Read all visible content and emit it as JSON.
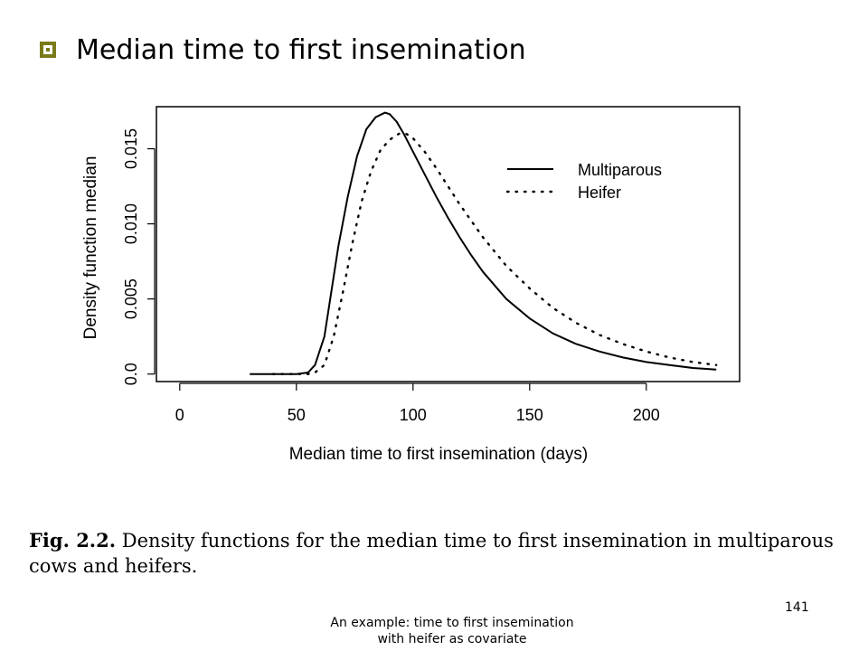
{
  "slide": {
    "title": "Median time to first insemination",
    "bullet_icon": "square-bullet-icon",
    "bullet_color": "#7a7a1a",
    "page_number": "141",
    "footer_line1": "An example: time to first insemination",
    "footer_line2": "with heifer as covariate"
  },
  "caption": {
    "fig": "Fig. 2.2.",
    "text": "Density functions for the median time to first insemination in multiparous cows and heifers."
  },
  "chart_data": {
    "type": "line",
    "title": "",
    "xlabel": "Median time to first insemination (days)",
    "ylabel": "Density function median",
    "xlim": [
      -10,
      240
    ],
    "ylim": [
      -0.0005,
      0.0178
    ],
    "xticks": [
      0,
      50,
      100,
      150,
      200
    ],
    "xtick_labels": [
      "0",
      "50",
      "100",
      "150",
      "200"
    ],
    "yticks": [
      0.0,
      0.005,
      0.01,
      0.015
    ],
    "ytick_labels": [
      "0.0",
      "0.005",
      "0.010",
      "0.015"
    ],
    "grid": false,
    "legend_position": "top-right",
    "series": [
      {
        "name": "Multiparous",
        "style": "solid",
        "x": [
          30,
          40,
          50,
          55,
          58,
          62,
          65,
          68,
          72,
          76,
          80,
          84,
          88,
          90,
          93,
          96,
          100,
          105,
          110,
          115,
          120,
          125,
          130,
          140,
          150,
          160,
          170,
          180,
          190,
          200,
          210,
          220,
          230
        ],
        "y": [
          0.0,
          0.0,
          0.0,
          0.0001,
          0.0006,
          0.0025,
          0.0055,
          0.0085,
          0.0118,
          0.0145,
          0.0163,
          0.0171,
          0.0174,
          0.0173,
          0.0168,
          0.016,
          0.0148,
          0.0133,
          0.0118,
          0.0104,
          0.0091,
          0.0079,
          0.0068,
          0.005,
          0.0037,
          0.0027,
          0.002,
          0.0015,
          0.0011,
          0.0008,
          0.0006,
          0.0004,
          0.0003
        ]
      },
      {
        "name": "Heifer",
        "style": "dotted",
        "x": [
          40,
          50,
          55,
          58,
          62,
          66,
          70,
          74,
          78,
          82,
          86,
          90,
          94,
          97,
          100,
          105,
          110,
          115,
          120,
          125,
          130,
          140,
          150,
          160,
          170,
          180,
          190,
          200,
          210,
          220,
          230
        ],
        "y": [
          0.0,
          0.0,
          0.0,
          0.0001,
          0.0006,
          0.0025,
          0.0055,
          0.0087,
          0.0115,
          0.0135,
          0.0149,
          0.0156,
          0.016,
          0.016,
          0.0157,
          0.0148,
          0.0137,
          0.0125,
          0.0113,
          0.0102,
          0.0091,
          0.0072,
          0.0057,
          0.0044,
          0.0034,
          0.0026,
          0.002,
          0.0015,
          0.0011,
          0.0008,
          0.0006
        ]
      }
    ]
  }
}
